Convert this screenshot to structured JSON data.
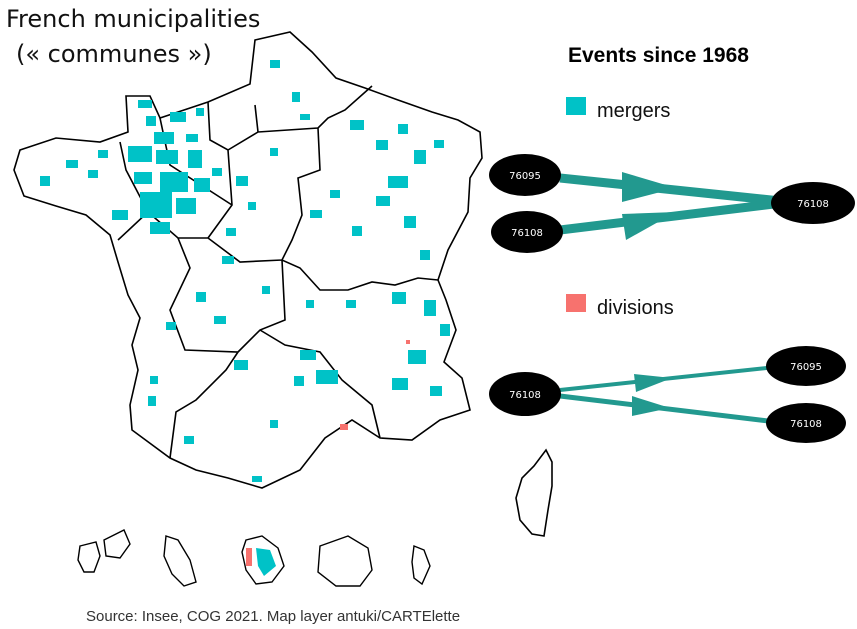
{
  "title": {
    "line1": "French municipalities",
    "line2": "(« communes »)"
  },
  "legend": {
    "title": "Events since 1968",
    "mergers": {
      "label": "mergers",
      "color": "#00C2C7"
    },
    "divisions": {
      "label": "divisions",
      "color": "#F7726E"
    }
  },
  "merger_diagram": {
    "sources": [
      "76095",
      "76108"
    ],
    "target": "76108"
  },
  "division_diagram": {
    "source": "76108",
    "targets": [
      "76095",
      "76108"
    ]
  },
  "edge_color": "#22998F",
  "source_note": "Source: Insee, COG 2021. Map layer antuki/CARTElette"
}
